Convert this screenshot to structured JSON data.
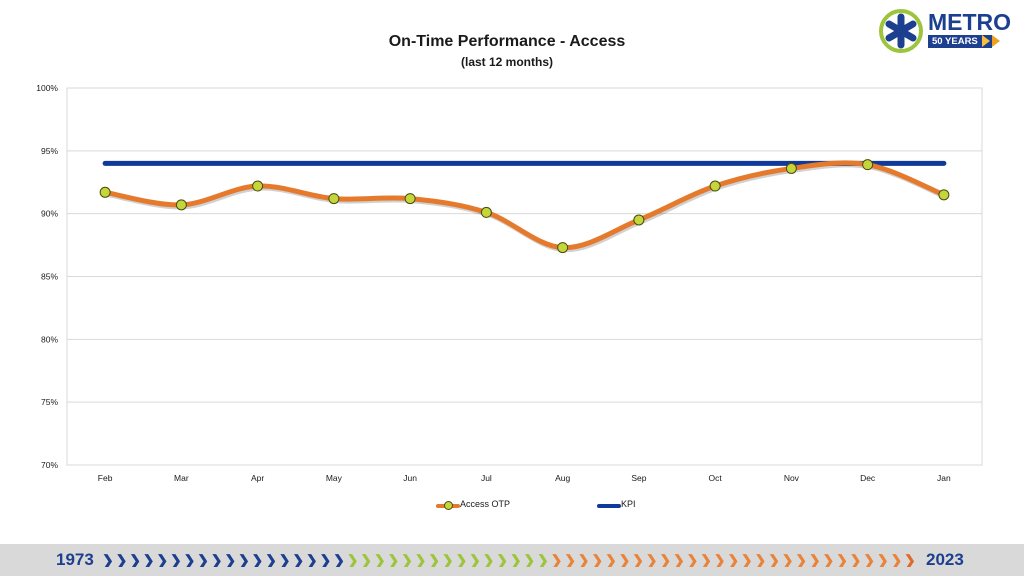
{
  "title": "On-Time Performance - Access",
  "subtitle": "(last 12 months)",
  "logo": {
    "name": "METRO",
    "tagline": "50 YEARS"
  },
  "footer": {
    "start_year": "1973",
    "end_year": "2023"
  },
  "colors": {
    "otp_line": "#e57a2c",
    "otp_marker": "#c5d63a",
    "kpi_line": "#0f3a9c",
    "grid": "#d9d9d9",
    "brand_blue": "#1d3f8f",
    "brand_green": "#9cc43c",
    "brand_orange": "#e8833a"
  },
  "chart_data": {
    "type": "line",
    "categories": [
      "Feb",
      "Mar",
      "Apr",
      "May",
      "Jun",
      "Jul",
      "Aug",
      "Sep",
      "Oct",
      "Nov",
      "Dec",
      "Jan"
    ],
    "series": [
      {
        "name": "Access OTP",
        "values": [
          91.7,
          90.7,
          92.2,
          91.2,
          91.2,
          90.1,
          87.3,
          89.5,
          92.2,
          93.6,
          93.9,
          91.5
        ],
        "smooth": true,
        "markers": true
      },
      {
        "name": "KPI",
        "values": [
          94,
          94,
          94,
          94,
          94,
          94,
          94,
          94,
          94,
          94,
          94,
          94
        ],
        "smooth": false,
        "markers": false
      }
    ],
    "ylim": [
      70,
      100
    ],
    "yticks": [
      100,
      95,
      90,
      85,
      80,
      75,
      70
    ],
    "ytick_labels": [
      "100%",
      "95%",
      "90%",
      "85%",
      "80%",
      "75%",
      "70%"
    ],
    "xlabel": "",
    "ylabel": "",
    "grid": true,
    "legend_position": "bottom"
  }
}
